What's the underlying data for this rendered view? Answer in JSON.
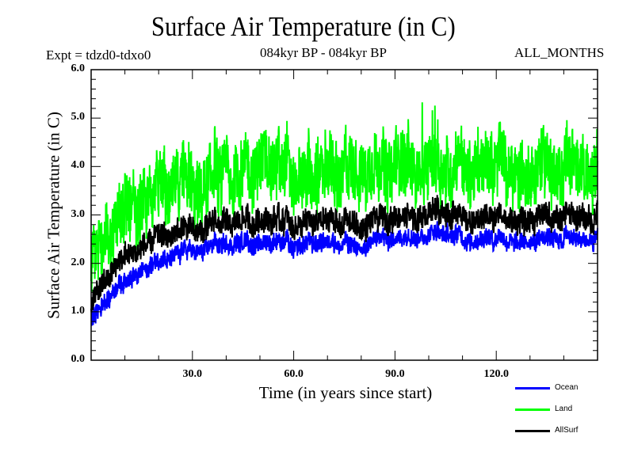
{
  "chart_data": {
    "type": "line",
    "title": "Surface Air Temperature (in C)",
    "subtitle_left": "Expt = tdzd0-tdxo0",
    "subtitle_center": "084kyr BP - 084kyr BP",
    "subtitle_right": "ALL_MONTHS",
    "xlabel": "Time (in years since start)",
    "ylabel": "Surface Air Temperature (in C)",
    "xlim": [
      0,
      150
    ],
    "ylim": [
      0,
      6
    ],
    "x_major_ticks": [
      30,
      60,
      90,
      120
    ],
    "x_tick_labels": [
      "30.0",
      "60.0",
      "90.0",
      "120.0"
    ],
    "x_minor_step": 10,
    "y_major_ticks": [
      0,
      1,
      2,
      3,
      4,
      5,
      6
    ],
    "y_tick_labels": [
      "0.0",
      "1.0",
      "2.0",
      "3.0",
      "4.0",
      "5.0",
      "6.0"
    ],
    "y_minor_step": 0.2,
    "grid": false,
    "legend_position": "bottom-right, below plot",
    "series": [
      {
        "name": "Ocean",
        "color": "#0000ff",
        "trend": [
          [
            0,
            0.75
          ],
          [
            3,
            1.1
          ],
          [
            6,
            1.4
          ],
          [
            10,
            1.6
          ],
          [
            15,
            1.85
          ],
          [
            20,
            2.0
          ],
          [
            25,
            2.15
          ],
          [
            30,
            2.3
          ],
          [
            35,
            2.35
          ],
          [
            40,
            2.4
          ],
          [
            45,
            2.45
          ],
          [
            50,
            2.3
          ],
          [
            55,
            2.45
          ],
          [
            60,
            2.35
          ],
          [
            65,
            2.5
          ],
          [
            70,
            2.45
          ],
          [
            75,
            2.4
          ],
          [
            80,
            2.25
          ],
          [
            85,
            2.55
          ],
          [
            90,
            2.5
          ],
          [
            95,
            2.55
          ],
          [
            100,
            2.6
          ],
          [
            105,
            2.7
          ],
          [
            110,
            2.5
          ],
          [
            115,
            2.45
          ],
          [
            120,
            2.5
          ],
          [
            125,
            2.45
          ],
          [
            130,
            2.5
          ],
          [
            135,
            2.5
          ],
          [
            140,
            2.55
          ],
          [
            145,
            2.5
          ],
          [
            150,
            2.55
          ]
        ],
        "noise": 0.28
      },
      {
        "name": "Land",
        "color": "#00ff00",
        "trend": [
          [
            0,
            1.9
          ],
          [
            3,
            2.3
          ],
          [
            6,
            2.7
          ],
          [
            10,
            3.0
          ],
          [
            15,
            3.2
          ],
          [
            20,
            3.4
          ],
          [
            25,
            3.5
          ],
          [
            30,
            3.65
          ],
          [
            35,
            3.75
          ],
          [
            40,
            3.85
          ],
          [
            45,
            3.9
          ],
          [
            50,
            3.8
          ],
          [
            55,
            3.9
          ],
          [
            60,
            3.85
          ],
          [
            65,
            4.0
          ],
          [
            70,
            3.95
          ],
          [
            75,
            3.9
          ],
          [
            80,
            3.8
          ],
          [
            85,
            4.0
          ],
          [
            90,
            4.05
          ],
          [
            95,
            4.0
          ],
          [
            100,
            4.1
          ],
          [
            105,
            4.15
          ],
          [
            110,
            4.0
          ],
          [
            115,
            3.9
          ],
          [
            120,
            3.95
          ],
          [
            125,
            3.9
          ],
          [
            130,
            4.0
          ],
          [
            135,
            3.95
          ],
          [
            140,
            4.05
          ],
          [
            145,
            4.0
          ],
          [
            150,
            4.0
          ]
        ],
        "noise": 1.0,
        "peak_max": 5.85
      },
      {
        "name": "AllSurf",
        "color": "#000000",
        "trend": [
          [
            0,
            1.15
          ],
          [
            3,
            1.5
          ],
          [
            6,
            1.85
          ],
          [
            10,
            2.1
          ],
          [
            15,
            2.35
          ],
          [
            20,
            2.5
          ],
          [
            25,
            2.6
          ],
          [
            30,
            2.75
          ],
          [
            35,
            2.8
          ],
          [
            40,
            2.85
          ],
          [
            45,
            2.9
          ],
          [
            50,
            2.75
          ],
          [
            55,
            2.9
          ],
          [
            60,
            2.8
          ],
          [
            65,
            2.95
          ],
          [
            70,
            2.9
          ],
          [
            75,
            2.85
          ],
          [
            80,
            2.7
          ],
          [
            85,
            2.95
          ],
          [
            90,
            2.95
          ],
          [
            95,
            2.95
          ],
          [
            100,
            3.05
          ],
          [
            105,
            3.15
          ],
          [
            110,
            2.95
          ],
          [
            115,
            2.85
          ],
          [
            120,
            2.95
          ],
          [
            125,
            2.9
          ],
          [
            130,
            2.95
          ],
          [
            135,
            2.95
          ],
          [
            140,
            3.0
          ],
          [
            145,
            2.95
          ],
          [
            150,
            3.0
          ]
        ],
        "noise": 0.38
      }
    ]
  }
}
